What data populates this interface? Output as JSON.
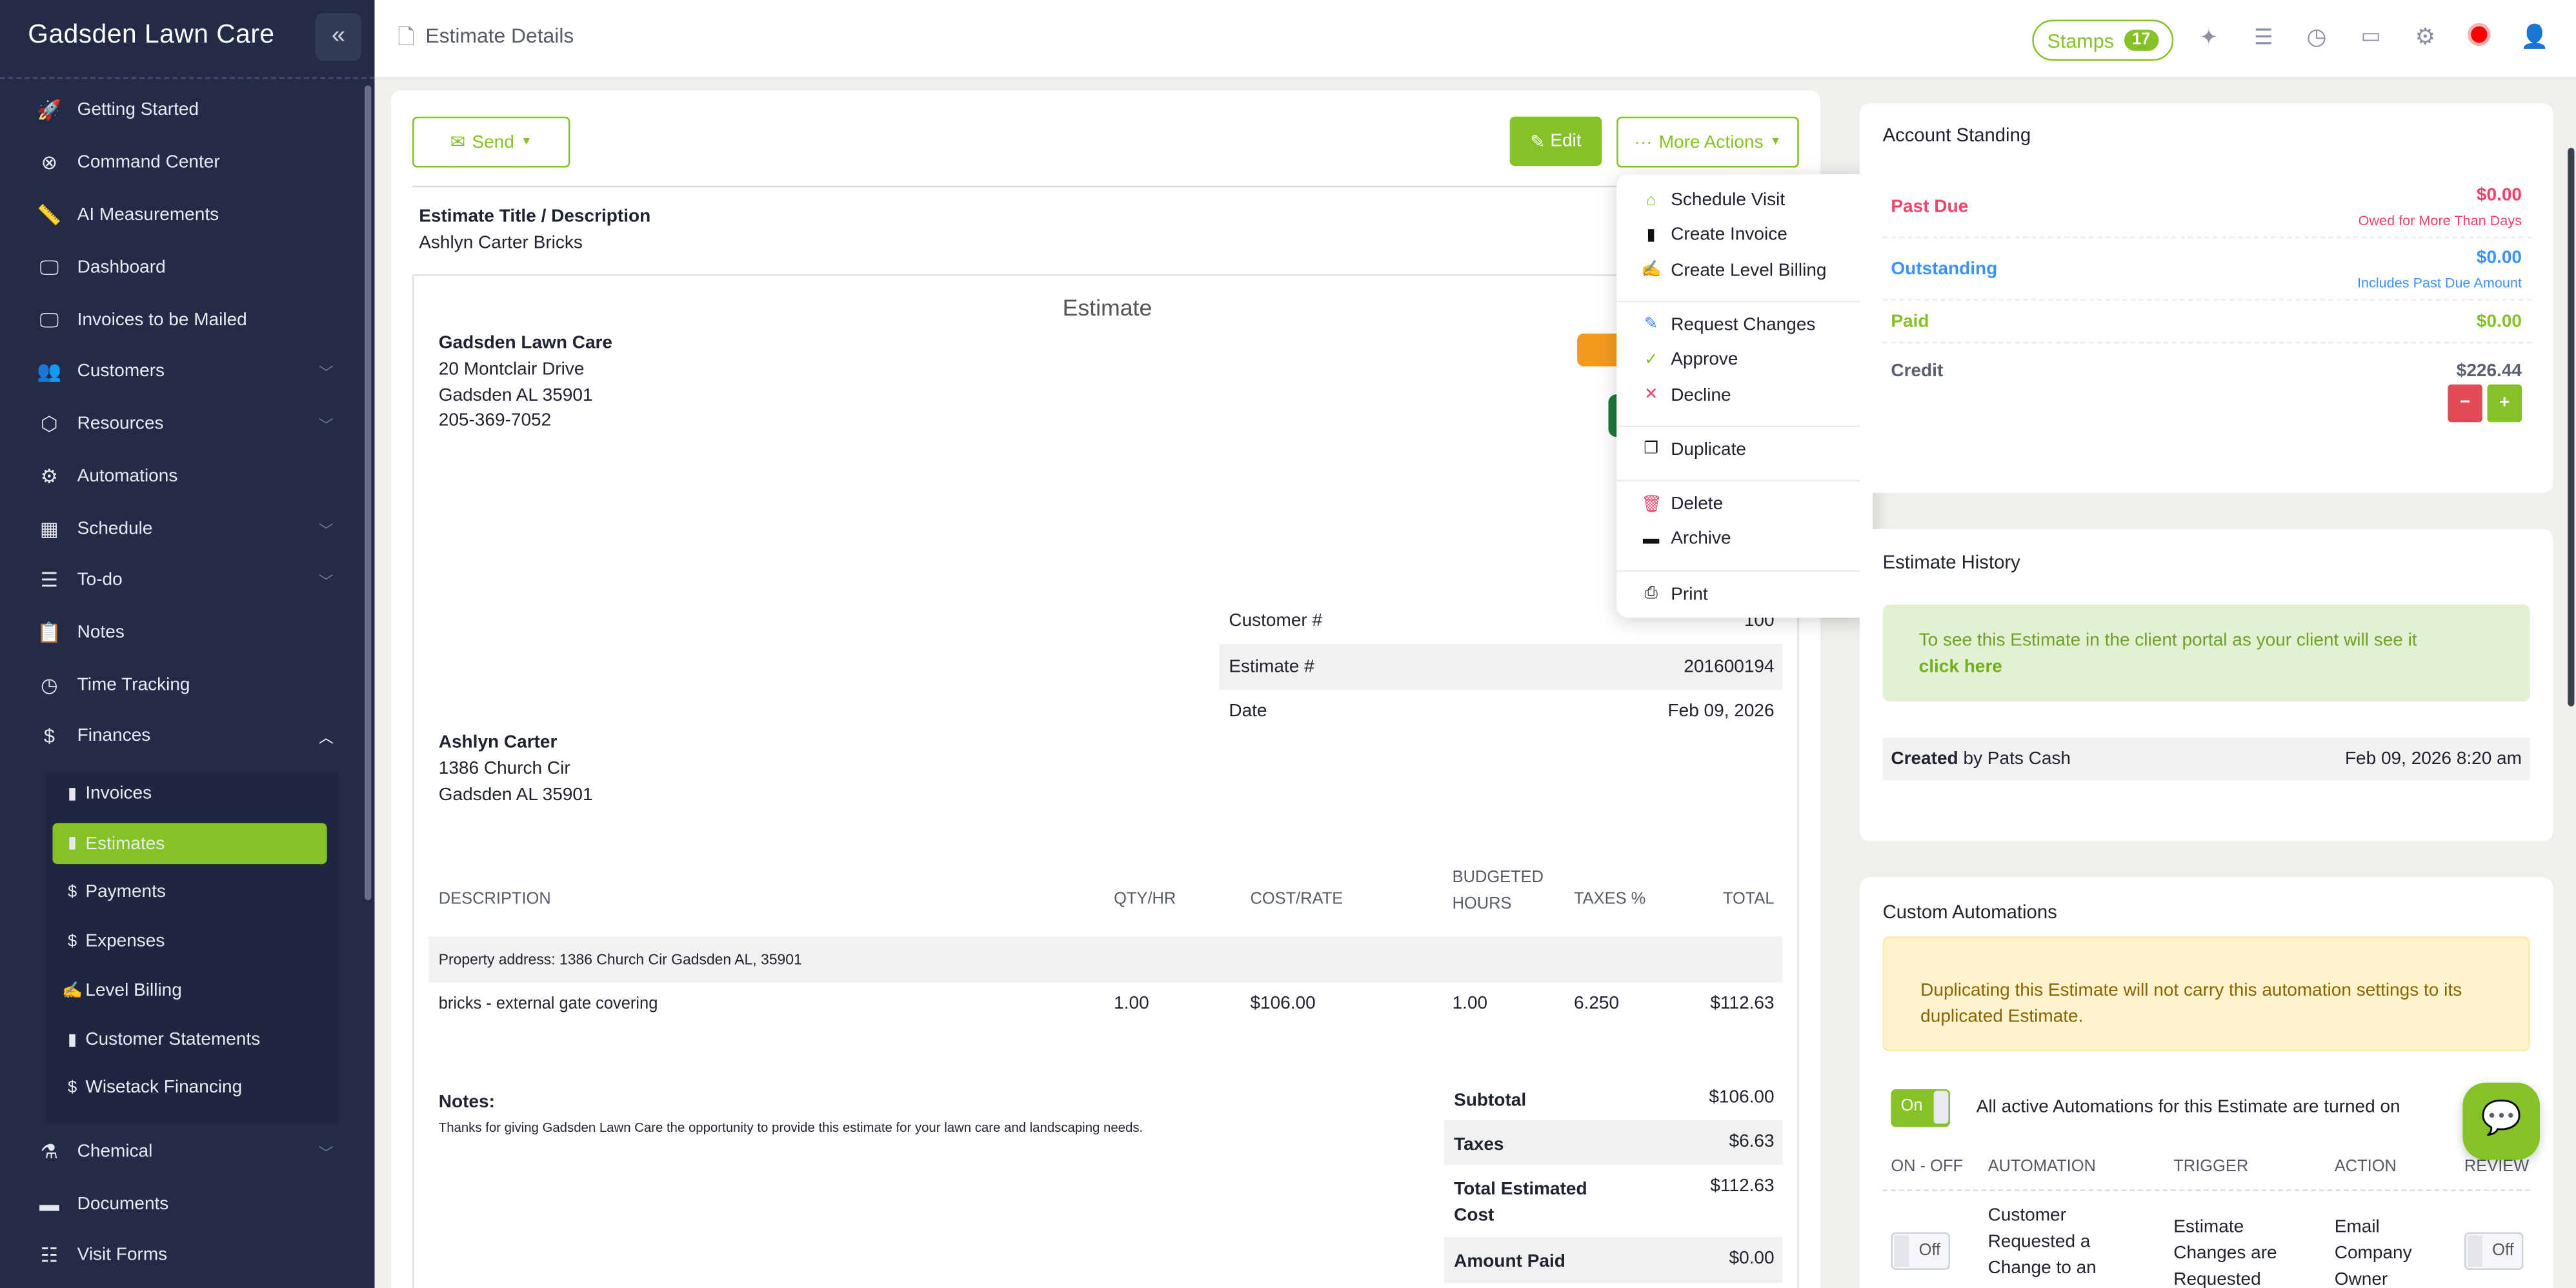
{
  "sidebar": {
    "title": "Gadsden Lawn Care",
    "collapse_icon": "double-chevron-left",
    "items": [
      {
        "label": "Getting Started",
        "icon": "rocket"
      },
      {
        "label": "Command Center",
        "icon": "life-ring"
      },
      {
        "label": "AI Measurements",
        "icon": "ruler"
      },
      {
        "label": "Dashboard",
        "icon": "monitor"
      },
      {
        "label": "Invoices to be Mailed",
        "icon": "monitor"
      },
      {
        "label": "Customers",
        "icon": "users",
        "chevron": true
      },
      {
        "label": "Resources",
        "icon": "box",
        "chevron": true
      },
      {
        "label": "Automations",
        "icon": "gears"
      },
      {
        "label": "Schedule",
        "icon": "calendar",
        "chevron": true
      },
      {
        "label": "To-do",
        "icon": "checklist",
        "chevron": true
      },
      {
        "label": "Notes",
        "icon": "clipboard"
      },
      {
        "label": "Time Tracking",
        "icon": "clock"
      },
      {
        "label": "Finances",
        "icon": "dollar",
        "chevron": "up"
      }
    ],
    "finance_sub": [
      {
        "label": "Invoices",
        "icon": "file"
      },
      {
        "label": "Estimates",
        "icon": "file",
        "active": true
      },
      {
        "label": "Payments",
        "icon": "dollar"
      },
      {
        "label": "Expenses",
        "icon": "dollar"
      },
      {
        "label": "Level Billing",
        "icon": "file-signature"
      },
      {
        "label": "Customer Statements",
        "icon": "file"
      },
      {
        "label": "Wisetack Financing",
        "icon": "dollar"
      }
    ],
    "bottom_items": [
      {
        "label": "Chemical",
        "icon": "flask",
        "chevron": true
      },
      {
        "label": "Documents",
        "icon": "folder"
      },
      {
        "label": "Visit Forms",
        "icon": "form"
      }
    ]
  },
  "header": {
    "title": "Estimate Details",
    "stamps_label": "Stamps",
    "stamps_count": "17"
  },
  "toolbar": {
    "send": "Send",
    "edit": "Edit",
    "more": "More Actions"
  },
  "estimate": {
    "title_label": "Estimate Title / Description",
    "title_value": "Ashlyn Carter Bricks",
    "doc_heading": "Estimate",
    "company": {
      "name": "Gadsden Lawn Care",
      "street": "20 Montclair Drive",
      "city": "Gadsden AL 35901",
      "phone": "205-369-7052"
    },
    "meta": [
      {
        "label": "Customer #",
        "value": "100"
      },
      {
        "label": "Estimate #",
        "value": "201600194"
      },
      {
        "label": "Date",
        "value": "Feb 09, 2026"
      }
    ],
    "client": {
      "name": "Ashlyn Carter",
      "street": "1386 Church Cir",
      "city": "Gadsden AL 35901"
    },
    "columns": [
      "DESCRIPTION",
      "QTY/HR",
      "COST/RATE",
      "BUDGETED HOURS",
      "TAXES %",
      "TOTAL"
    ],
    "property_address": "Property address: 1386 Church Cir Gadsden AL, 35901",
    "line": {
      "description": "bricks - external gate covering",
      "qty": "1.00",
      "rate": "$106.00",
      "hours": "1.00",
      "tax": "6.250",
      "total": "$112.63"
    },
    "notes_label": "Notes:",
    "notes": "Thanks for giving Gadsden Lawn Care the opportunity to provide this estimate for your lawn care and landscaping needs.",
    "totals": [
      {
        "label": "Subtotal",
        "value": "$106.00"
      },
      {
        "label": "Taxes",
        "value": "$6.63"
      },
      {
        "label": "Total Estimated Cost",
        "value": "$112.63"
      },
      {
        "label": "Amount Paid",
        "value": "$0.00"
      }
    ]
  },
  "menu": {
    "groups": [
      [
        {
          "label": "Schedule Visit",
          "icon": "home",
          "color": "#84c225"
        },
        {
          "label": "Create Invoice",
          "icon": "file-invoice",
          "color": "#111"
        },
        {
          "label": "Create Level Billing",
          "icon": "file-signature",
          "color": "#111"
        }
      ],
      [
        {
          "label": "Request Changes",
          "icon": "pencil",
          "color": "#3b82f6"
        },
        {
          "label": "Approve",
          "icon": "check",
          "color": "#84c225"
        },
        {
          "label": "Decline",
          "icon": "x",
          "color": "#f0436b"
        }
      ],
      [
        {
          "label": "Duplicate",
          "icon": "copy",
          "color": "#111"
        }
      ],
      [
        {
          "label": "Delete",
          "icon": "trash",
          "color": "#f0436b"
        },
        {
          "label": "Archive",
          "icon": "folder",
          "color": "#111"
        }
      ],
      [
        {
          "label": "Print",
          "icon": "printer",
          "color": "#111"
        }
      ]
    ]
  },
  "account": {
    "title": "Account Standing",
    "past_due": {
      "label": "Past Due",
      "value": "$0.00",
      "note": "Owed for More Than Days",
      "color": "#f0436b"
    },
    "outstanding": {
      "label": "Outstanding",
      "value": "$0.00",
      "note": "Includes Past Due Amount",
      "color": "#3b93f7"
    },
    "paid": {
      "label": "Paid",
      "value": "$0.00",
      "color": "#84c225"
    },
    "credit": {
      "label": "Credit",
      "value": "$226.44",
      "minus": "−",
      "plus": "+"
    }
  },
  "history": {
    "title": "Estimate History",
    "portal_text": "To see this Estimate in the client portal as your client will see it",
    "portal_link": "click here",
    "created_label": "Created",
    "created_by": "by Pats Cash",
    "created_at": "Feb 09, 2026 8:20 am"
  },
  "automations": {
    "title": "Custom Automations",
    "warning": "Duplicating this Estimate will not carry this automation settings to its duplicated Estimate.",
    "master_toggle": "On",
    "master_text": "All active Automations for this Estimate are turned on",
    "columns": [
      "ON - OFF",
      "AUTOMATION",
      "TRIGGER",
      "ACTION",
      "REVIEW"
    ],
    "row": {
      "toggle": "Off",
      "automation": "Customer Requested a Change to an",
      "trigger": "Estimate Changes are Requested",
      "action": "Email Company Owner",
      "review": "Off"
    }
  },
  "colors": {
    "accent": "#84c225",
    "sidebar": "#232b47",
    "danger": "#e24a56"
  }
}
